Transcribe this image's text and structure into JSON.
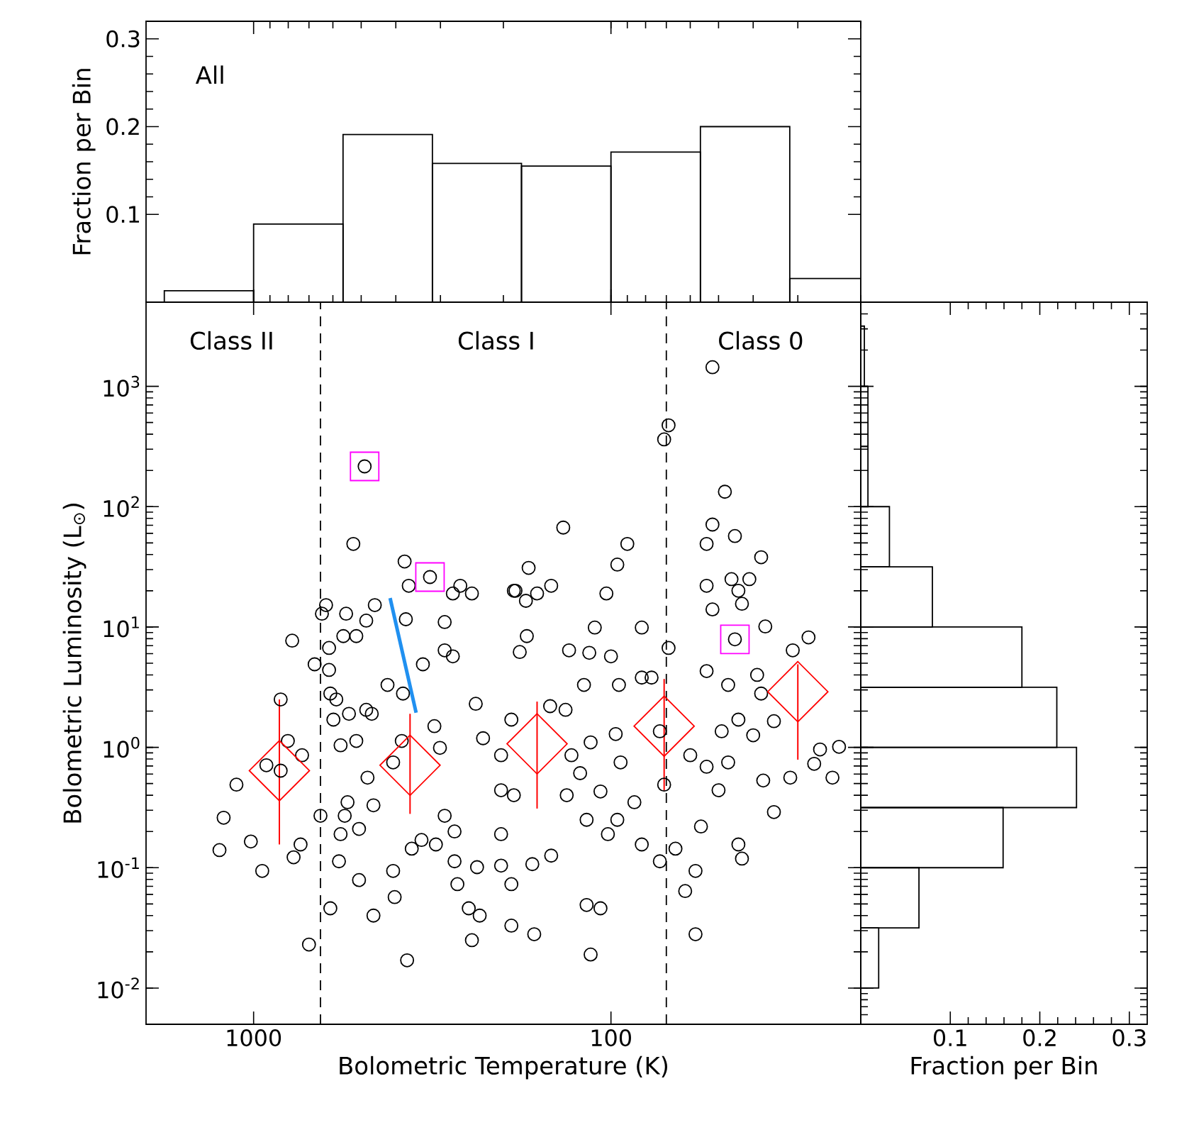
{
  "chart_data": [
    {
      "type": "histogram",
      "ylabel": "Fraction per Bin",
      "annotations": [
        "All"
      ],
      "color": "#000000",
      "bins": [
        1778,
        1000,
        562,
        316,
        178,
        100,
        56.2,
        31.6,
        20
      ],
      "values": [
        0.013,
        0.089,
        0.191,
        0.158,
        0.155,
        0.171,
        0.2,
        0.027
      ],
      "xlim": [
        2000,
        20
      ],
      "log": "x",
      "ylim": [
        0,
        0.32
      ],
      "yticks": [
        0.1,
        0.2,
        0.3
      ],
      "tick_labels": "y"
    },
    {
      "type": "scatter",
      "xlabel": "Bolometric Temperature (K)",
      "ylabel": "Bolometric Luminosity (L$_{⊙}$)",
      "annotations": [
        "Class II",
        "Class I",
        "Class 0"
      ],
      "xlim": [
        2000,
        20
      ],
      "ylim": [
        0.005,
        5000
      ],
      "log": "xy",
      "xticks": [
        1000,
        100
      ],
      "yticks": [
        {
          "value": 0.01,
          "label": "10$^{-2}$"
        },
        {
          "value": 0.1,
          "label": "10$^{-1}$"
        },
        {
          "value": 1,
          "label": "10$^{0}$"
        },
        {
          "value": 10,
          "label": "10$^{1}$"
        },
        {
          "value": 100,
          "label": "10$^{2}$"
        },
        {
          "value": 1000,
          "label": "10$^{3}$"
        }
      ],
      "ref_lines": [
        {
          "axis": "x",
          "value": 650,
          "line_style": "dashed",
          "color": "#000000"
        },
        {
          "axis": "x",
          "value": 70,
          "line_style": "dashed",
          "color": "#000000"
        }
      ],
      "series": [
        {
          "type": "scatter",
          "marker": "circle",
          "color": "#000000",
          "x": [
            1246,
            1213,
            1117,
            1018,
            946,
            921,
            840,
            840,
            802,
            773,
            739,
            732,
            700,
            650,
            780,
            675,
            615,
            610,
            587,
            598,
            571,
            541,
            516,
            546,
            556,
            571,
            577,
            507,
            507,
            610,
            462,
            484,
            467,
            480,
            462,
            422,
            382,
            407,
            385,
            372,
            403,
            407,
            361,
            339,
            336,
            312,
            301,
            309,
            292,
            274,
            274,
            250,
            245,
            239,
            237,
            233,
            269,
            228,
            489,
            321,
            526,
            378,
            368,
            277,
            264,
            245,
            187,
            644,
            627,
            551,
            484,
            458,
            375,
            292,
            615,
            561,
            516,
            292,
            277,
            52,
            69,
            71,
            48,
            136,
            52,
            45,
            54,
            90,
            96,
            170,
            38,
            185,
            173,
            161,
            147,
            103,
            54,
            46,
            41,
            44,
            43,
            52,
            172,
            180,
            111,
            82,
            69,
            131,
            115,
            100,
            37,
            28,
            31,
            45,
            190,
            203,
            203,
            187,
            203,
            203,
            190,
            190,
            166,
            164,
            147,
            148,
            134,
            129,
            133,
            117,
            114,
            122,
            119,
            107,
            102,
            117,
            107,
            114,
            95,
            94,
            97,
            96,
            86,
            82,
            82,
            77,
            73,
            71,
            73,
            66,
            62,
            58,
            58,
            56,
            60,
            54,
            50,
            47,
            44,
            43,
            49,
            44,
            40,
            37.5,
            35,
            35,
            31.5,
            27,
            26,
            24,
            23,
            54,
            47,
            39,
            38
          ],
          "values": [
            0.14,
            0.26,
            0.49,
            0.165,
            0.094,
            0.71,
            0.64,
            2.5,
            1.13,
            0.122,
            0.156,
            0.86,
            0.023,
            0.27,
            7.7,
            4.9,
            4.4,
            2.8,
            2.5,
            1.7,
            1.04,
            1.9,
            1.13,
            0.35,
            0.27,
            0.19,
            0.113,
            0.21,
            0.079,
            0.046,
            0.04,
            2.05,
            1.9,
            0.56,
            0.33,
            3.3,
            2.8,
            0.75,
            1.13,
            0.017,
            0.057,
            0.094,
            0.144,
            0.17,
            4.9,
            1.5,
            0.99,
            0.156,
            0.27,
            0.2,
            0.113,
            0.046,
            0.025,
            2.3,
            0.101,
            0.04,
            0.073,
            1.19,
            216,
            26,
            49,
            35,
            22,
            19,
            22,
            19,
            20,
            12.9,
            15.2,
            12.9,
            11.3,
            15.2,
            11.6,
            11,
            6.7,
            8.4,
            8.4,
            6.4,
            5.7,
            1440,
            474,
            362,
            133,
            67,
            71,
            57,
            49,
            49,
            33,
            31,
            38,
            20,
            16.5,
            19,
            22,
            19,
            22,
            25,
            25,
            20,
            15.6,
            14,
            8.4,
            6.2,
            9.9,
            9.9,
            6.7,
            6.4,
            6.1,
            5.7,
            10.1,
            8.2,
            6.4,
            7.9,
            1.7,
            0.86,
            0.44,
            0.4,
            0.19,
            0.104,
            0.073,
            0.033,
            0.107,
            0.028,
            0.126,
            2.2,
            2.05,
            0.86,
            0.4,
            0.25,
            1.1,
            0.61,
            3.3,
            0.43,
            0.19,
            0.049,
            0.046,
            0.019,
            3.3,
            0.75,
            1.29,
            0.25,
            0.35,
            0.156,
            3.8,
            3.8,
            1.36,
            0.49,
            0.113,
            0.144,
            0.064,
            0.028,
            0.094,
            0.22,
            0.86,
            0.69,
            0.44,
            0.75,
            0.156,
            0.119,
            1.36,
            1.7,
            1.26,
            0.53,
            0.29,
            1.65,
            0.56,
            0.73,
            0.96,
            0.56,
            1.01,
            4.3,
            3.3,
            4.0,
            2.8
          ]
        },
        {
          "type": "scatter",
          "marker": "square",
          "color": "#ff00ff",
          "x": [
            489,
            321,
            45
          ],
          "values": [
            216,
            26,
            7.9
          ]
        },
        {
          "type": "line",
          "color": "#2090f0",
          "x": [
            415,
            351
          ],
          "values": [
            17.4,
            1.94
          ]
        },
        {
          "type": "scatter",
          "marker": "diamond",
          "color": "#ff0000",
          "x": [
            847,
            365,
            161,
            71,
            30
          ],
          "values": [
            0.64,
            0.71,
            1.07,
            1.5,
            2.9
          ],
          "errors": [
            [
              0.156,
              2.5
            ],
            [
              0.28,
              1.9
            ],
            [
              0.31,
              2.4
            ],
            [
              0.44,
              3.7
            ],
            [
              0.79,
              4.9
            ]
          ]
        }
      ]
    },
    {
      "type": "histogram",
      "orientation": "horizontal",
      "xlabel": "Fraction per Bin",
      "color": "#000000",
      "bins": [
        0.01,
        0.0316,
        0.1,
        0.316,
        1,
        3.16,
        10,
        31.6,
        100,
        316,
        1000,
        3162
      ],
      "values": [
        0.02,
        0.065,
        0.159,
        0.241,
        0.219,
        0.18,
        0.08,
        0.032,
        0.008,
        0.008,
        0.004
      ],
      "xlim": [
        0,
        0.32
      ],
      "xticks": [
        0.1,
        0.2,
        0.3
      ],
      "ylim": [
        0.005,
        5000
      ],
      "log": "y",
      "tick_labels": "x"
    }
  ]
}
